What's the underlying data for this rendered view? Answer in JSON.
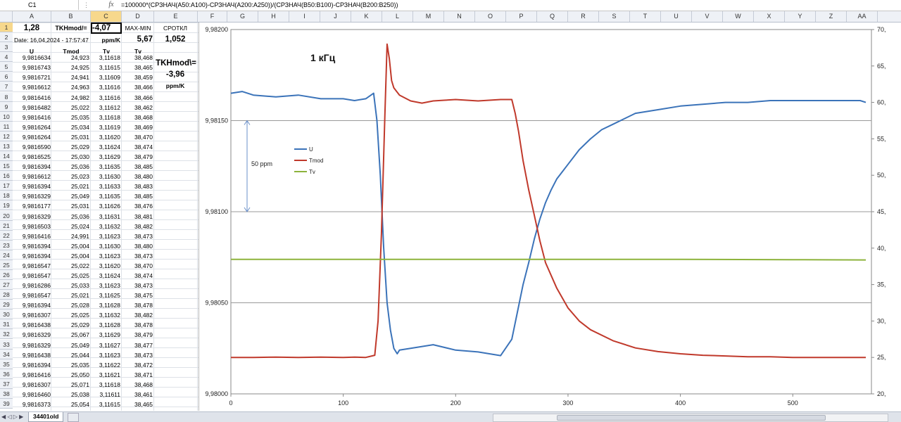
{
  "formula_bar": {
    "name_box": "C1",
    "fx": "fx",
    "formula": "=100000*(СРЗНАЧ(A50:A100)-СРЗНАЧ(A200:A250))/(СРЗНАЧ(B50:B100)-СРЗНАЧ(B200:B250))"
  },
  "columns": [
    "A",
    "B",
    "C",
    "D",
    "E",
    "F",
    "G",
    "H",
    "I",
    "J",
    "K",
    "L",
    "M",
    "N",
    "O",
    "P",
    "Q",
    "R",
    "S",
    "T",
    "U",
    "V",
    "W",
    "X",
    "Y",
    "Z",
    "AA"
  ],
  "header_cells": {
    "a1": "1,28",
    "b1": "TKHmod/=",
    "c1": "-4,07",
    "d1": "MAX-MIN",
    "e1": "СРОТКЛ",
    "a2": "Date: 16,04,2024 - 17:57:47",
    "c2": "ppm/K",
    "d2": "5,67",
    "e2": "1,052",
    "a3": "U",
    "b3": "Tmod",
    "c3": "Tv",
    "d3": "Tv",
    "e4": "TKHmod\\=",
    "e5": "-3,96",
    "e6": "ppm/K"
  },
  "rows": [
    [
      "9,9816634",
      "24,923",
      "3,11618",
      "38,468"
    ],
    [
      "9,9816743",
      "24,925",
      "3,11615",
      "38,465"
    ],
    [
      "9,9816721",
      "24,941",
      "3,11609",
      "38,459"
    ],
    [
      "9,9816612",
      "24,963",
      "3,11616",
      "38,466"
    ],
    [
      "9,9816416",
      "24,982",
      "3,11616",
      "38,466"
    ],
    [
      "9,9816482",
      "25,022",
      "3,11612",
      "38,462"
    ],
    [
      "9,9816416",
      "25,035",
      "3,11618",
      "38,468"
    ],
    [
      "9,9816264",
      "25,034",
      "3,11619",
      "38,469"
    ],
    [
      "9,9816264",
      "25,031",
      "3,11620",
      "38,470"
    ],
    [
      "9,9816590",
      "25,029",
      "3,11624",
      "38,474"
    ],
    [
      "9,9816525",
      "25,030",
      "3,11629",
      "38,479"
    ],
    [
      "9,9816394",
      "25,036",
      "3,11635",
      "38,485"
    ],
    [
      "9,9816612",
      "25,023",
      "3,11630",
      "38,480"
    ],
    [
      "9,9816394",
      "25,021",
      "3,11633",
      "38,483"
    ],
    [
      "9,9816329",
      "25,049",
      "3,11635",
      "38,485"
    ],
    [
      "9,9816177",
      "25,031",
      "3,11626",
      "38,476"
    ],
    [
      "9,9816329",
      "25,036",
      "3,11631",
      "38,481"
    ],
    [
      "9,9816503",
      "25,024",
      "3,11632",
      "38,482"
    ],
    [
      "9,9816416",
      "24,991",
      "3,11623",
      "38,473"
    ],
    [
      "9,9816394",
      "25,004",
      "3,11630",
      "38,480"
    ],
    [
      "9,9816394",
      "25,004",
      "3,11623",
      "38,473"
    ],
    [
      "9,9816547",
      "25,022",
      "3,11620",
      "38,470"
    ],
    [
      "9,9816547",
      "25,025",
      "3,11624",
      "38,474"
    ],
    [
      "9,9816286",
      "25,033",
      "3,11623",
      "38,473"
    ],
    [
      "9,9816547",
      "25,021",
      "3,11625",
      "38,475"
    ],
    [
      "9,9816394",
      "25,028",
      "3,11628",
      "38,478"
    ],
    [
      "9,9816307",
      "25,025",
      "3,11632",
      "38,482"
    ],
    [
      "9,9816438",
      "25,029",
      "3,11628",
      "38,478"
    ],
    [
      "9,9816329",
      "25,067",
      "3,11629",
      "38,479"
    ],
    [
      "9,9816329",
      "25,049",
      "3,11627",
      "38,477"
    ],
    [
      "9,9816438",
      "25,044",
      "3,11623",
      "38,473"
    ],
    [
      "9,9816394",
      "25,035",
      "3,11622",
      "38,472"
    ],
    [
      "9,9816416",
      "25,050",
      "3,11621",
      "38,471"
    ],
    [
      "9,9816307",
      "25,071",
      "3,11618",
      "38,468"
    ],
    [
      "9,9816460",
      "25,038",
      "3,11611",
      "38,461"
    ],
    [
      "9,9816373",
      "25,054",
      "3,11615",
      "38,465"
    ]
  ],
  "sheet_tab": "34401old",
  "chart_data": {
    "type": "line",
    "title": "1 кГц",
    "annotation": "50 ppm",
    "xlim": [
      0,
      570
    ],
    "x_ticks": [
      "0",
      "100",
      "200",
      "300",
      "400",
      "500"
    ],
    "ylim_left": [
      9.98,
      9.982
    ],
    "y_left_ticks": [
      "9,98000",
      "9,98050",
      "9,98100",
      "9,98150",
      "9,98200"
    ],
    "ylim_right": [
      20,
      70
    ],
    "y_right_ticks": [
      "20,",
      "25,",
      "30,",
      "35,",
      "40,",
      "45,",
      "50,",
      "55,",
      "60,",
      "65,",
      "70,"
    ],
    "gridlines_left": [
      9.9805,
      9.981,
      9.9815
    ],
    "legend": [
      {
        "name": "U",
        "color": "#3b73b9"
      },
      {
        "name": "Tmod",
        "color": "#c0392b"
      },
      {
        "name": "Tv",
        "color": "#8db33c"
      }
    ],
    "series": [
      {
        "name": "U",
        "axis": "left",
        "color": "#3b73b9",
        "x": [
          0,
          10,
          20,
          40,
          60,
          80,
          100,
          110,
          120,
          127,
          130,
          133,
          136,
          139,
          142,
          145,
          148,
          150,
          160,
          180,
          200,
          220,
          240,
          250,
          255,
          260,
          265,
          270,
          275,
          280,
          285,
          290,
          295,
          300,
          310,
          320,
          330,
          340,
          350,
          360,
          380,
          400,
          420,
          440,
          460,
          480,
          500,
          520,
          540,
          560,
          565
        ],
        "y": [
          9.98165,
          9.98166,
          9.98164,
          9.98163,
          9.98164,
          9.98162,
          9.98162,
          9.98161,
          9.98162,
          9.98165,
          9.9815,
          9.9812,
          9.9808,
          9.9805,
          9.98035,
          9.98025,
          9.98022,
          9.98024,
          9.98025,
          9.98027,
          9.98024,
          9.98023,
          9.98021,
          9.9803,
          9.98045,
          9.9806,
          9.98072,
          9.98085,
          9.98096,
          9.98105,
          9.98112,
          9.98118,
          9.98122,
          9.98126,
          9.98134,
          9.9814,
          9.98145,
          9.98148,
          9.98151,
          9.98154,
          9.98156,
          9.98158,
          9.98159,
          9.9816,
          9.9816,
          9.98161,
          9.98161,
          9.98161,
          9.98161,
          9.98161,
          9.9816
        ]
      },
      {
        "name": "Tmod",
        "axis": "right",
        "color": "#c0392b",
        "x": [
          0,
          20,
          40,
          60,
          80,
          100,
          110,
          120,
          128,
          131,
          134,
          137,
          139,
          141,
          143,
          145,
          150,
          160,
          170,
          180,
          190,
          200,
          220,
          240,
          250,
          253,
          256,
          260,
          265,
          270,
          275,
          280,
          290,
          300,
          310,
          320,
          340,
          360,
          380,
          400,
          420,
          440,
          460,
          480,
          500,
          520,
          540,
          565
        ],
        "y": [
          25.0,
          25.0,
          25.05,
          25.0,
          25.05,
          25.0,
          25.05,
          25.0,
          25.3,
          30.0,
          42.0,
          58.0,
          68.0,
          66.0,
          63.0,
          62.0,
          61.0,
          60.2,
          59.9,
          60.2,
          60.3,
          60.4,
          60.2,
          60.4,
          60.4,
          58.5,
          56.0,
          52.0,
          48.0,
          44.5,
          41.0,
          38.0,
          34.5,
          31.8,
          30.0,
          28.8,
          27.3,
          26.3,
          25.8,
          25.5,
          25.3,
          25.2,
          25.1,
          25.1,
          25.0,
          25.0,
          25.0,
          25.0
        ]
      },
      {
        "name": "Tv",
        "axis": "right",
        "color": "#8db33c",
        "x": [
          0,
          100,
          200,
          300,
          400,
          500,
          565
        ],
        "y": [
          38.47,
          38.46,
          38.47,
          38.47,
          38.47,
          38.42,
          38.38
        ]
      }
    ]
  }
}
